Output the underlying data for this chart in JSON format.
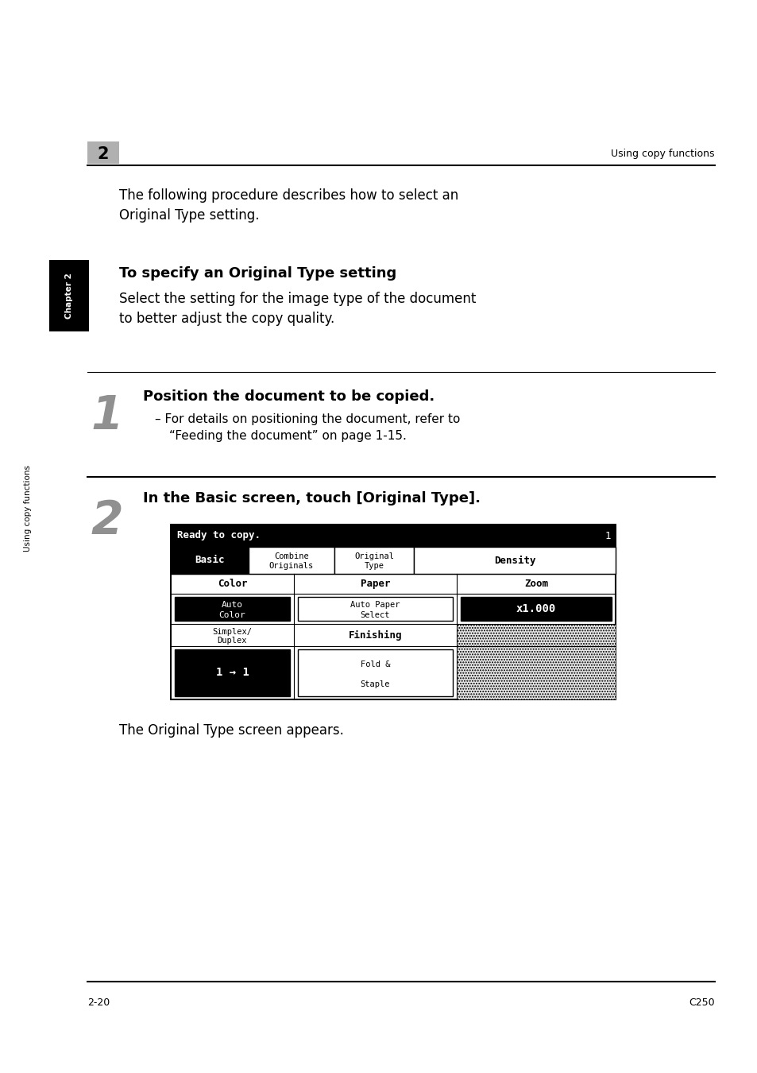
{
  "bg_color": "#ffffff",
  "header_number": "2",
  "header_number_bg": "#b0b0b0",
  "header_right_text": "Using copy functions",
  "intro_text_line1": "The following procedure describes how to select an",
  "intro_text_line2": "Original Type setting.",
  "section_title": "To specify an Original Type setting",
  "section_desc_line1": "Select the setting for the image type of the document",
  "section_desc_line2": "to better adjust the copy quality.",
  "sidebar_text": "Using copy functions",
  "step1_number": "1",
  "step1_text": "Position the document to be copied.",
  "step1_sub1": "– For details on positioning the document, refer to",
  "step1_sub2": "“Feeding the document” on page 1-15.",
  "step2_number": "2",
  "step2_text": "In the Basic screen, touch [Original Type].",
  "footer_left": "2-20",
  "footer_right": "C250",
  "screen_caption": "The Original Type screen appears.",
  "chapter_tab_text": "Chapter 2",
  "chapter_tab_bg": "#000000",
  "chapter_tab_text_color": "#ffffff"
}
